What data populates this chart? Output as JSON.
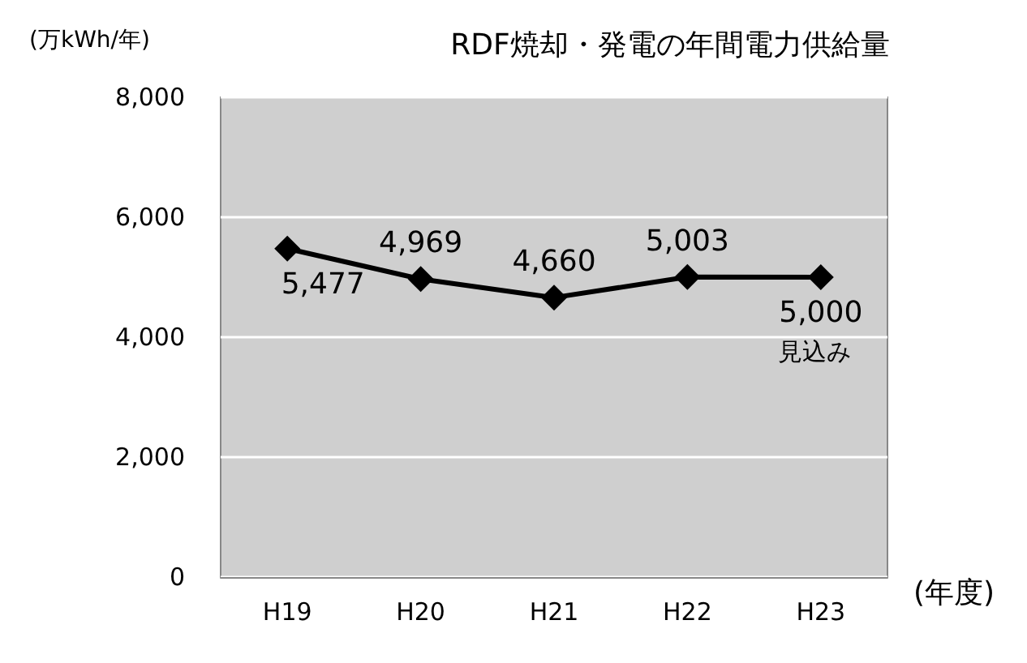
{
  "chart_data": {
    "type": "line",
    "title": "RDF焼却・発電の年間電力供給量",
    "ylabel": "(万kWh/年)",
    "xlabel": "(年度)",
    "categories": [
      "H19",
      "H20",
      "H21",
      "H22",
      "H23"
    ],
    "series": [
      {
        "color": "#000000",
        "values": [
          5477,
          4969,
          4660,
          5003,
          5000
        ],
        "value_labels": [
          "5,477",
          "4,969",
          "4,660",
          "5,003",
          "5,000"
        ]
      }
    ],
    "ylim": [
      0,
      8000
    ],
    "yticks": [
      0,
      {
        "value": 2000,
        "label": "2,000"
      },
      {
        "value": 4000,
        "label": "4,000"
      },
      {
        "value": 6000,
        "label": "6,000"
      },
      {
        "value": 8000,
        "label": "8,000"
      }
    ],
    "grid": "y",
    "marker": "diamond",
    "line_style": "solid",
    "annotations": [
      {
        "text": "見込み",
        "x": "H23",
        "y": 5000
      }
    ]
  }
}
